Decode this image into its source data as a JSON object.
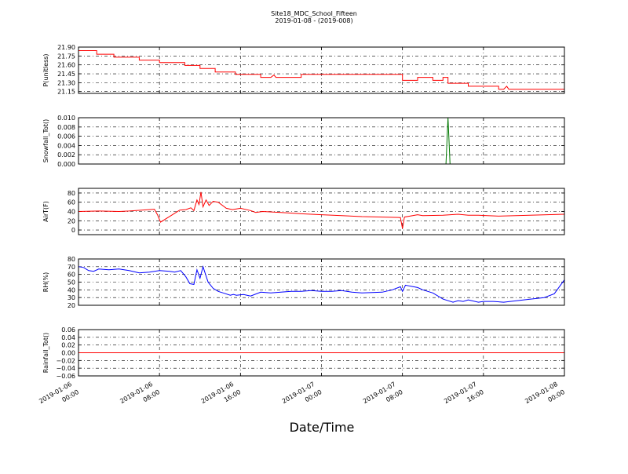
{
  "chart_data": {
    "type": "line",
    "title": "Site18_MDC_School_Fifteen",
    "subtitle": "2019-01-08 - (2019-008)",
    "xlabel": "Date/Time",
    "x_tick_labels": [
      [
        "2019-01-06",
        "00:00"
      ],
      [
        "2019-01-06",
        "08:00"
      ],
      [
        "2019-01-06",
        "16:00"
      ],
      [
        "2019-01-07",
        "00:00"
      ],
      [
        "2019-01-07",
        "08:00"
      ],
      [
        "2019-01-07",
        "16:00"
      ],
      [
        "2019-01-08",
        "00:00"
      ]
    ],
    "x_range_hours": [
      0,
      48
    ],
    "grid": true,
    "panels": [
      {
        "ylabel": "P(unitless)",
        "ylim": [
          21.12,
          21.9
        ],
        "yticks": [
          "21.15",
          "21.30",
          "21.45",
          "21.60",
          "21.75",
          "21.90"
        ],
        "color": "#ff0000",
        "x": [
          0,
          1.8,
          1.8,
          3.5,
          3.5,
          6.0,
          6.0,
          8.0,
          8.0,
          10.5,
          10.5,
          12.0,
          12.0,
          13.5,
          13.5,
          15.5,
          15.5,
          18.0,
          18.0,
          19.0,
          19.3,
          19.5,
          19.5,
          22.0,
          22.0,
          32.0,
          32.0,
          33.5,
          33.5,
          35.0,
          35.0,
          36.0,
          36.0,
          36.5,
          36.5,
          38.5,
          38.5,
          41.5,
          41.5,
          42.0,
          42.3,
          42.5,
          42.5,
          48.0
        ],
        "values": [
          21.84,
          21.84,
          21.78,
          21.78,
          21.73,
          21.73,
          21.68,
          21.68,
          21.64,
          21.64,
          21.59,
          21.59,
          21.54,
          21.54,
          21.48,
          21.48,
          21.44,
          21.44,
          21.39,
          21.39,
          21.43,
          21.39,
          21.39,
          21.39,
          21.44,
          21.44,
          21.34,
          21.34,
          21.39,
          21.39,
          21.34,
          21.34,
          21.39,
          21.39,
          21.29,
          21.29,
          21.24,
          21.24,
          21.19,
          21.19,
          21.24,
          21.19,
          21.19,
          21.19
        ]
      },
      {
        "ylabel": "Snowfall_Tot()",
        "ylim": [
          0,
          0.01
        ],
        "yticks": [
          "0.000",
          "0.002",
          "0.004",
          "0.006",
          "0.008",
          "0.010"
        ],
        "color": "#007700",
        "x": [
          0,
          36.3,
          36.5,
          36.7,
          48.0
        ],
        "values": [
          0,
          0,
          0.01,
          0,
          0
        ]
      },
      {
        "ylabel": "AirT(F)",
        "ylim": [
          -10,
          90
        ],
        "yticks": [
          "0",
          "20",
          "40",
          "60",
          "80"
        ],
        "color": "#ff0000",
        "x": [
          0,
          2,
          4,
          5,
          7.5,
          7.8,
          8.1,
          10,
          10.6,
          11.1,
          11.4,
          11.7,
          11.9,
          12.1,
          12.3,
          12.6,
          12.9,
          13.3,
          13.8,
          14.6,
          15.2,
          16,
          17,
          17.5,
          18.2,
          20,
          22,
          24,
          26,
          28,
          30,
          31.8,
          32.0,
          32.2,
          33.5,
          34,
          36,
          37.5,
          38.5,
          39.5,
          41.5,
          48
        ],
        "values": [
          40,
          41,
          40,
          41,
          45,
          33,
          17,
          43,
          44,
          48,
          42,
          65,
          55,
          82,
          50,
          65,
          53,
          62,
          60,
          47,
          44,
          47,
          42,
          38,
          40,
          38,
          35,
          33,
          31,
          29,
          28,
          27,
          3,
          28,
          33,
          31,
          32,
          34,
          32,
          32,
          30,
          34
        ]
      },
      {
        "ylabel": "RH(%)",
        "ylim": [
          20,
          80
        ],
        "yticks": [
          "20",
          "30",
          "40",
          "50",
          "60",
          "70",
          "80"
        ],
        "color": "#0000ff",
        "x": [
          0,
          0.5,
          1,
          1.5,
          2,
          3,
          4,
          5,
          6,
          7,
          8,
          9,
          9.5,
          10.1,
          10.6,
          11,
          11.4,
          11.7,
          12.0,
          12.3,
          12.8,
          13.3,
          13.8,
          14.3,
          15.0,
          15.3,
          15.6,
          16.3,
          17.0,
          18,
          19,
          20,
          21,
          22,
          23,
          24,
          25,
          26,
          27,
          28,
          30,
          31,
          31.8,
          32.0,
          32.3,
          33.5,
          34,
          35,
          36.0,
          37,
          37.5,
          38,
          38.5,
          39.5,
          40,
          41,
          42,
          44,
          46,
          47,
          48
        ],
        "values": [
          70,
          69,
          65,
          64,
          67,
          66,
          67,
          65,
          62,
          63,
          65,
          64,
          63,
          65,
          57,
          48,
          47,
          66,
          55,
          70,
          50,
          42,
          38,
          36,
          33,
          34,
          33,
          34,
          32,
          37,
          36,
          37,
          38,
          38,
          39,
          38,
          38,
          39,
          37,
          36,
          37,
          40,
          44,
          38,
          46,
          43,
          40,
          36,
          28,
          24,
          26,
          25,
          27,
          24,
          25,
          25,
          24,
          27,
          30,
          35,
          53
        ]
      },
      {
        "ylabel": "Rainfall_Tot()",
        "ylim": [
          -0.06,
          0.06
        ],
        "yticks": [
          "−0.06",
          "−0.04",
          "−0.02",
          "0.00",
          "0.02",
          "0.04",
          "0.06"
        ],
        "color": "#ff0000",
        "x": [
          0,
          48
        ],
        "values": [
          0,
          0
        ]
      }
    ]
  }
}
